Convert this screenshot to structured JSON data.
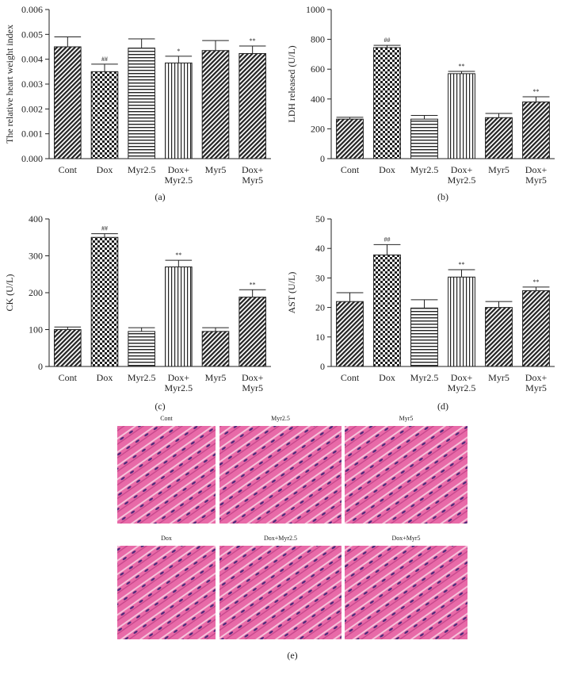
{
  "chart_data": [
    {
      "type": "bar",
      "y_label": "The relative heart weight index",
      "panel_label": "(a)",
      "categories": [
        "Cont",
        "Dox",
        "Myr2.5",
        "Dox+\nMyr2.5",
        "Myr5",
        "Dox+\nMyr5"
      ],
      "values": [
        0.0045,
        0.0035,
        0.00445,
        0.00385,
        0.00435,
        0.00423
      ],
      "errors": [
        0.0004,
        0.0003,
        0.00037,
        0.00027,
        0.0004,
        0.0003
      ],
      "markers": [
        null,
        "##",
        null,
        "*",
        null,
        "**"
      ],
      "ylim": [
        0,
        0.006
      ],
      "yticks": [
        {
          "value": 0,
          "label": "0.000"
        },
        {
          "value": 0.001,
          "label": "0.001"
        },
        {
          "value": 0.002,
          "label": "0.002"
        },
        {
          "value": 0.003,
          "label": "0.003"
        },
        {
          "value": 0.004,
          "label": "0.004"
        },
        {
          "value": 0.005,
          "label": "0.005"
        },
        {
          "value": 0.006,
          "label": "0.006"
        }
      ]
    },
    {
      "type": "bar",
      "y_label": "LDH released (U/L)",
      "panel_label": "(b)",
      "categories": [
        "Cont",
        "Dox",
        "Myr2.5",
        "Dox+\nMyr2.5",
        "Myr5",
        "Dox+\nMyr5"
      ],
      "values": [
        265,
        745,
        265,
        570,
        275,
        380
      ],
      "errors": [
        12,
        15,
        25,
        15,
        28,
        35
      ],
      "markers": [
        null,
        "##",
        null,
        "**",
        null,
        "**"
      ],
      "ylim": [
        0,
        1000
      ],
      "yticks": [
        0,
        200,
        400,
        600,
        800,
        1000
      ]
    },
    {
      "type": "bar",
      "y_label": "CK (U/L)",
      "panel_label": "(c)",
      "categories": [
        "Cont",
        "Dox",
        "Myr2.5",
        "Dox+\nMyr2.5",
        "Myr5",
        "Dox+\nMyr5"
      ],
      "values": [
        100,
        350,
        95,
        270,
        95,
        188
      ],
      "errors": [
        7,
        10,
        10,
        18,
        10,
        20
      ],
      "markers": [
        null,
        "##",
        null,
        "**",
        null,
        "**"
      ],
      "ylim": [
        0,
        400
      ],
      "yticks": [
        0,
        100,
        200,
        300,
        400
      ]
    },
    {
      "type": "bar",
      "y_label": "AST (U/L)",
      "panel_label": "(d)",
      "categories": [
        "Cont",
        "Dox",
        "Myr2.5",
        "Dox+\nMyr2.5",
        "Myr5",
        "Dox+\nMyr5"
      ],
      "values": [
        22,
        37.8,
        19.8,
        30.3,
        20,
        25.7
      ],
      "errors": [
        3,
        3.5,
        2.8,
        2.5,
        2,
        1.2
      ],
      "markers": [
        null,
        "##",
        null,
        "**",
        null,
        "**"
      ],
      "ylim": [
        0,
        50
      ],
      "yticks": [
        0,
        10,
        20,
        30,
        40,
        50
      ]
    }
  ],
  "histology": {
    "panel_label": "(e)",
    "panels": [
      "Cont",
      "Myr2.5",
      "Myr5",
      "Dox",
      "Dox+Myr2.5",
      "Dox+Myr5"
    ]
  }
}
